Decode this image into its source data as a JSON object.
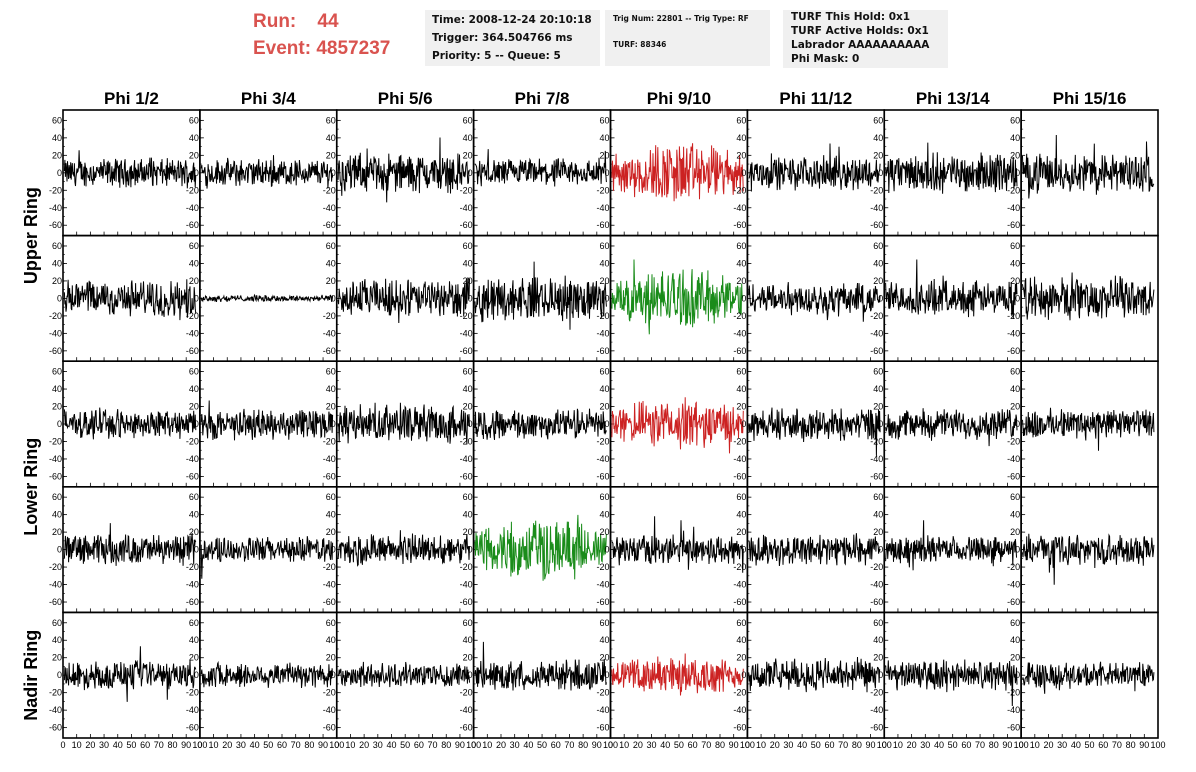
{
  "header": {
    "run_label": "Run:",
    "run_value": "44",
    "event_label": "Event:",
    "event_value": "4857237",
    "time_line": "Time: 2008-12-24 20:10:18",
    "trigger_line": "Trigger: 364.504766 ms",
    "priority_line": "Priority: 5 -- Queue: 5",
    "trig_line": "Trig Num: 22801 -- Trig Type: RF",
    "turf_line": "TURF: 88346",
    "turf_hold_line": "TURF This Hold: 0x1",
    "turf_active_line": "TURF Active Holds: 0x1",
    "labrador_line": "Labrador AAAAAAAAAA",
    "phimask_line": "Phi Mask: 0"
  },
  "colors": {
    "accent_text": "#d9534f",
    "trace_default": "#000000",
    "trace_red": "#cc2222",
    "trace_green": "#1a8c1a"
  },
  "chart_data": {
    "type": "line",
    "columns": [
      "Phi 1/2",
      "Phi 3/4",
      "Phi 5/6",
      "Phi 7/8",
      "Phi 9/10",
      "Phi 11/12",
      "Phi 13/14",
      "Phi 15/16"
    ],
    "rings": [
      {
        "name": "Upper Ring",
        "rows": [
          0,
          1
        ]
      },
      {
        "name": "Lower Ring",
        "rows": [
          2,
          3
        ]
      },
      {
        "name": "Nadir Ring",
        "rows": [
          4
        ]
      }
    ],
    "ylim": [
      -65,
      65
    ],
    "xlim": [
      0,
      100
    ],
    "yticks": [
      -60,
      -40,
      -20,
      0,
      20,
      40,
      60
    ],
    "xticks": [
      0,
      10,
      20,
      30,
      40,
      50,
      60,
      70,
      80,
      90,
      100
    ],
    "amplitudes": [
      [
        13,
        13,
        18,
        13,
        25,
        15,
        18,
        18
      ],
      [
        17,
        3,
        18,
        20,
        24,
        15,
        16,
        20
      ],
      [
        13,
        14,
        18,
        14,
        20,
        15,
        14,
        14
      ],
      [
        14,
        12,
        14,
        25,
        14,
        14,
        12,
        14
      ],
      [
        13,
        12,
        11,
        14,
        16,
        15,
        14,
        12
      ]
    ],
    "highlights": [
      {
        "row": 0,
        "col": 4,
        "color": "red"
      },
      {
        "row": 1,
        "col": 4,
        "color": "green"
      },
      {
        "row": 2,
        "col": 4,
        "color": "red"
      },
      {
        "row": 3,
        "col": 3,
        "color": "green"
      },
      {
        "row": 4,
        "col": 4,
        "color": "red"
      }
    ]
  }
}
